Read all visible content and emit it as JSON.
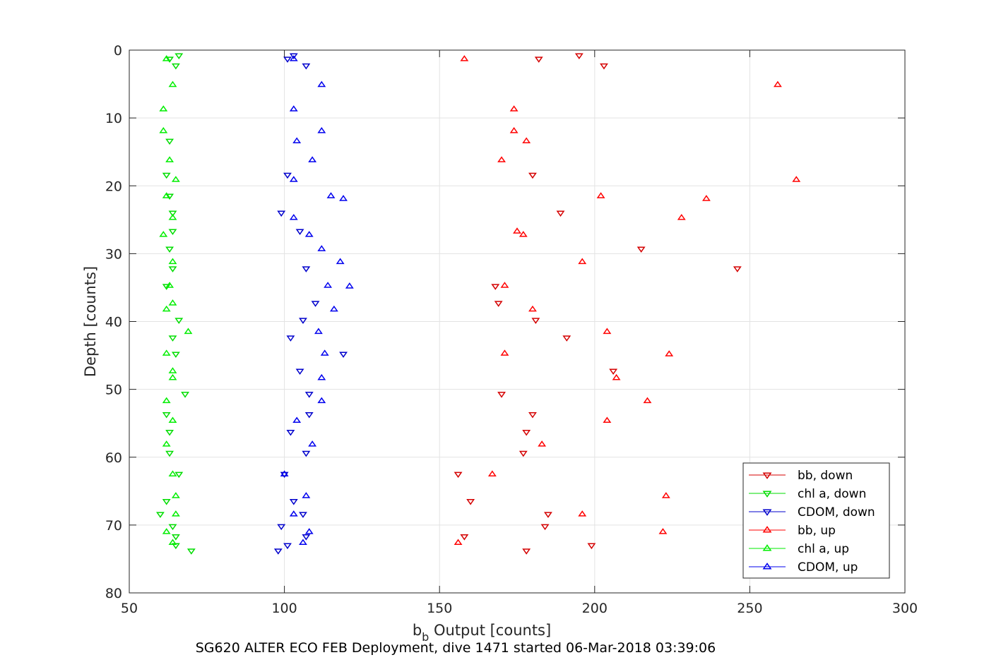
{
  "chart_data": {
    "type": "scatter",
    "xlabel_main": "b",
    "xlabel_sub": "b",
    "xlabel_rest": " Output [counts]",
    "ylabel": "Depth [counts]",
    "caption": "SG620 ALTER ECO FEB Deployment, dive 1471 started 06-Mar-2018 03:39:06",
    "xlim": [
      50,
      300
    ],
    "ylim": [
      0,
      80
    ],
    "y_reversed": true,
    "grid": true,
    "legend_position": "bottom-right",
    "x_ticks": [
      "50",
      "100",
      "150",
      "200",
      "250",
      "300"
    ],
    "y_ticks": [
      "0",
      "10",
      "20",
      "30",
      "40",
      "50",
      "60",
      "70",
      "80"
    ],
    "series": [
      {
        "name": "bb, down",
        "color": "#d40000",
        "marker": "down",
        "points": [
          [
            195,
            0.8
          ],
          [
            182,
            1.3
          ],
          [
            203,
            2.3
          ],
          [
            180,
            18.4
          ],
          [
            189,
            24.0
          ],
          [
            215,
            29.3
          ],
          [
            246,
            32.2
          ],
          [
            168,
            34.8
          ],
          [
            169,
            37.3
          ],
          [
            181,
            39.8
          ],
          [
            191,
            42.4
          ],
          [
            206,
            47.3
          ],
          [
            170,
            50.7
          ],
          [
            180,
            53.7
          ],
          [
            178,
            56.3
          ],
          [
            177,
            59.4
          ],
          [
            156,
            62.5
          ],
          [
            160,
            66.5
          ],
          [
            185,
            68.4
          ],
          [
            184,
            70.2
          ],
          [
            158,
            71.7
          ],
          [
            199,
            73.0
          ],
          [
            178,
            73.8
          ]
        ]
      },
      {
        "name": "chl a, down",
        "color": "#00dd00",
        "marker": "down",
        "points": [
          [
            66,
            0.8
          ],
          [
            63,
            1.3
          ],
          [
            65,
            2.3
          ],
          [
            63,
            13.4
          ],
          [
            62,
            18.4
          ],
          [
            63,
            21.5
          ],
          [
            64,
            24.0
          ],
          [
            64,
            26.7
          ],
          [
            63,
            29.3
          ],
          [
            64,
            32.2
          ],
          [
            62,
            34.8
          ],
          [
            66,
            39.8
          ],
          [
            64,
            42.4
          ],
          [
            65,
            44.8
          ],
          [
            68,
            50.7
          ],
          [
            62,
            53.7
          ],
          [
            63,
            56.3
          ],
          [
            63,
            59.4
          ],
          [
            66,
            62.5
          ],
          [
            62,
            66.5
          ],
          [
            60,
            68.4
          ],
          [
            64,
            70.2
          ],
          [
            65,
            71.7
          ],
          [
            65,
            73.0
          ],
          [
            70,
            73.8
          ]
        ]
      },
      {
        "name": "CDOM, down",
        "color": "#0000cc",
        "marker": "down",
        "points": [
          [
            103,
            0.8
          ],
          [
            101,
            1.3
          ],
          [
            107,
            2.3
          ],
          [
            101,
            18.4
          ],
          [
            99,
            24.0
          ],
          [
            105,
            26.7
          ],
          [
            107,
            32.2
          ],
          [
            110,
            37.3
          ],
          [
            106,
            39.8
          ],
          [
            102,
            42.4
          ],
          [
            119,
            44.8
          ],
          [
            105,
            47.3
          ],
          [
            108,
            50.7
          ],
          [
            108,
            53.7
          ],
          [
            102,
            56.3
          ],
          [
            107,
            59.4
          ],
          [
            100,
            62.5
          ],
          [
            103,
            66.5
          ],
          [
            106,
            68.4
          ],
          [
            99,
            70.2
          ],
          [
            107,
            71.7
          ],
          [
            101,
            73.0
          ],
          [
            98,
            73.8
          ]
        ]
      },
      {
        "name": "bb, up",
        "color": "#ff0000",
        "marker": "up",
        "points": [
          [
            158,
            1.3
          ],
          [
            259,
            5.1
          ],
          [
            174,
            8.7
          ],
          [
            174,
            11.9
          ],
          [
            178,
            13.4
          ],
          [
            170,
            16.2
          ],
          [
            265,
            19.1
          ],
          [
            202,
            21.5
          ],
          [
            236,
            21.9
          ],
          [
            228,
            24.7
          ],
          [
            175,
            26.7
          ],
          [
            177,
            27.2
          ],
          [
            196,
            31.2
          ],
          [
            171,
            34.7
          ],
          [
            180,
            38.2
          ],
          [
            204,
            41.5
          ],
          [
            171,
            44.7
          ],
          [
            224,
            44.8
          ],
          [
            207,
            48.3
          ],
          [
            217,
            51.7
          ],
          [
            204,
            54.6
          ],
          [
            183,
            58.1
          ],
          [
            167,
            62.5
          ],
          [
            223,
            65.7
          ],
          [
            196,
            68.4
          ],
          [
            222,
            71.0
          ],
          [
            156,
            72.6
          ]
        ]
      },
      {
        "name": "chl a, up",
        "color": "#00ee00",
        "marker": "up",
        "points": [
          [
            62,
            1.3
          ],
          [
            64,
            5.1
          ],
          [
            61,
            8.7
          ],
          [
            61,
            11.9
          ],
          [
            63,
            16.2
          ],
          [
            65,
            19.1
          ],
          [
            62,
            21.5
          ],
          [
            64,
            24.7
          ],
          [
            61,
            27.2
          ],
          [
            64,
            31.2
          ],
          [
            63,
            34.7
          ],
          [
            62,
            38.2
          ],
          [
            64,
            37.3
          ],
          [
            69,
            41.5
          ],
          [
            62,
            44.7
          ],
          [
            64,
            47.3
          ],
          [
            64,
            48.3
          ],
          [
            62,
            51.7
          ],
          [
            64,
            54.6
          ],
          [
            62,
            58.1
          ],
          [
            64,
            62.5
          ],
          [
            65,
            65.7
          ],
          [
            65,
            68.4
          ],
          [
            62,
            71.0
          ],
          [
            64,
            72.6
          ]
        ]
      },
      {
        "name": "CDOM, up",
        "color": "#0000ee",
        "marker": "up",
        "points": [
          [
            103,
            1.3
          ],
          [
            112,
            5.1
          ],
          [
            103,
            8.7
          ],
          [
            112,
            11.9
          ],
          [
            104,
            13.4
          ],
          [
            109,
            16.2
          ],
          [
            103,
            19.1
          ],
          [
            115,
            21.5
          ],
          [
            119,
            21.9
          ],
          [
            103,
            24.7
          ],
          [
            108,
            27.2
          ],
          [
            112,
            29.3
          ],
          [
            118,
            31.2
          ],
          [
            114,
            34.7
          ],
          [
            121,
            34.8
          ],
          [
            116,
            38.2
          ],
          [
            111,
            41.5
          ],
          [
            113,
            44.7
          ],
          [
            112,
            48.3
          ],
          [
            112,
            51.7
          ],
          [
            104,
            54.6
          ],
          [
            109,
            58.1
          ],
          [
            100,
            62.5
          ],
          [
            107,
            65.7
          ],
          [
            103,
            68.4
          ],
          [
            108,
            71.0
          ],
          [
            106,
            72.6
          ]
        ]
      }
    ]
  }
}
